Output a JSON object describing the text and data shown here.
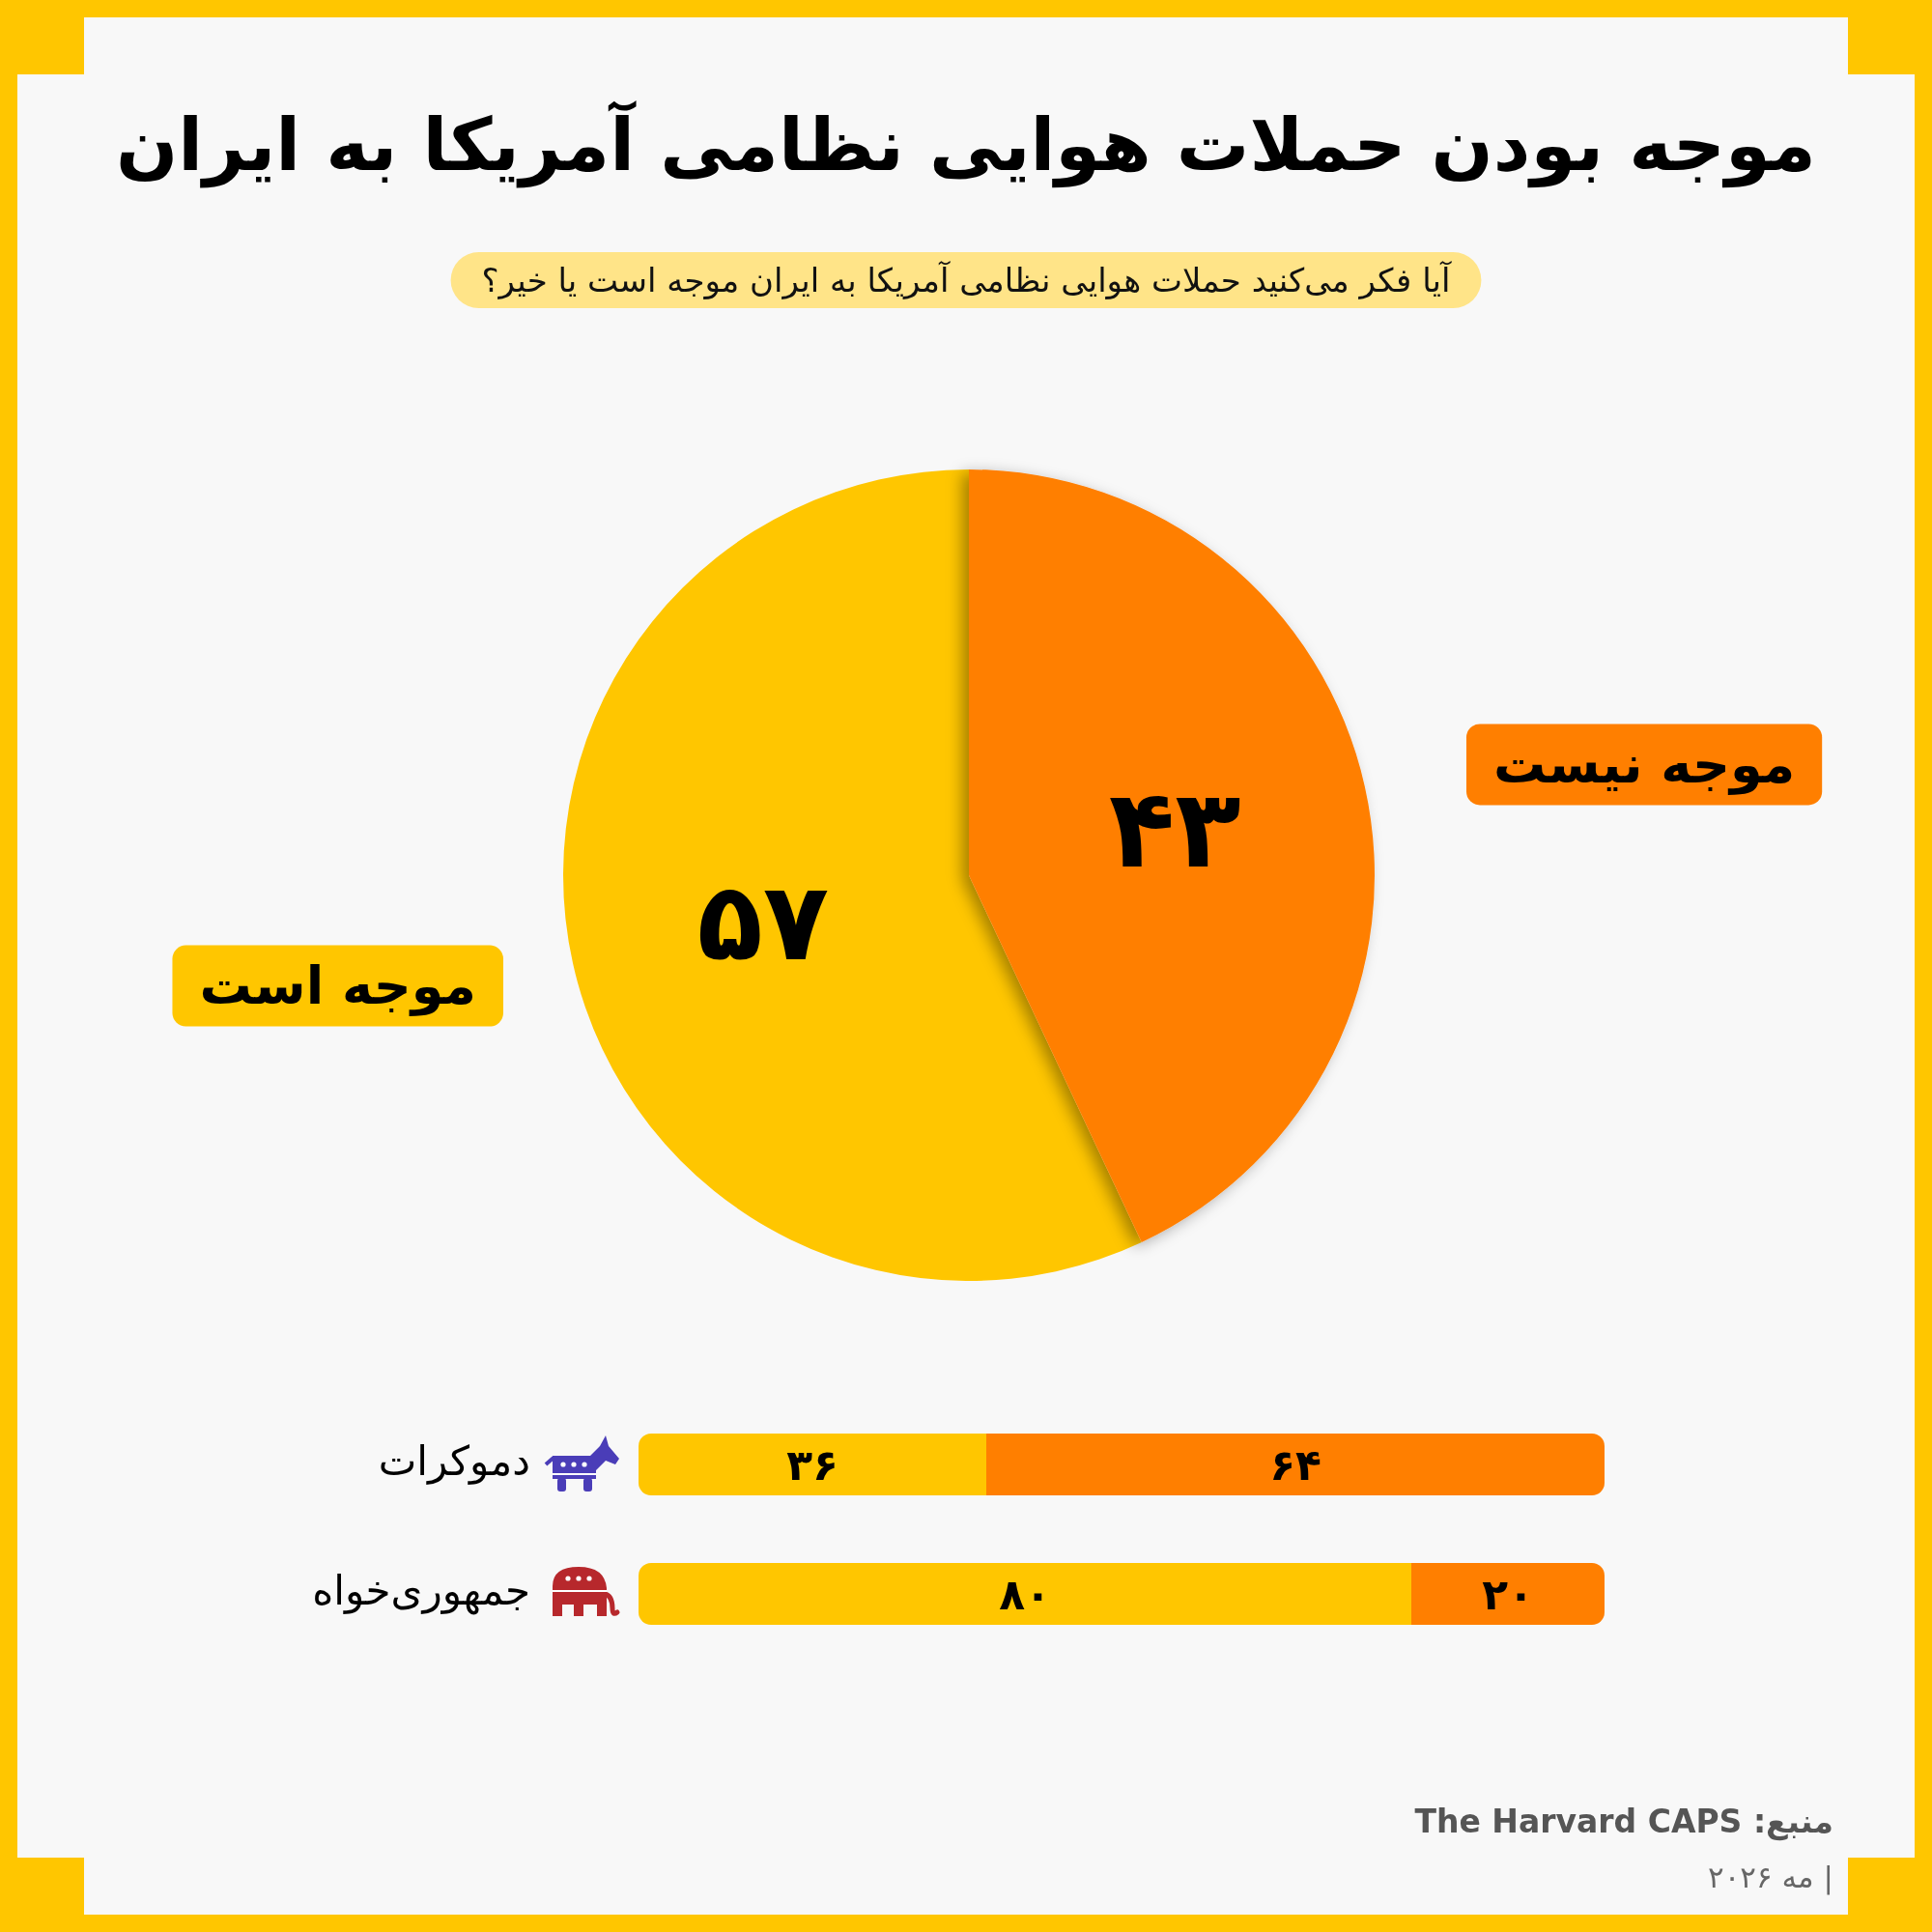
{
  "chart_data": [
    {
      "type": "pie",
      "title": "موجه بودن حملات هوایی نظامی آمریکا به ایران",
      "subtitle": "آیا فکر می‌کنید حملات هوایی نظامی آمریکا به ایران موجه است یا خیر؟",
      "categories": [
        "موجه است",
        "موجه نیست"
      ],
      "values": [
        57,
        43
      ],
      "colors": [
        "#ffc600",
        "#ff7f00"
      ],
      "value_labels": [
        "۵۷",
        "۴۳"
      ]
    },
    {
      "type": "bar",
      "orientation": "horizontal",
      "stacked": true,
      "categories": [
        "دموکرات",
        "جمهوری‌خواه"
      ],
      "xlim": [
        0,
        100
      ],
      "series": [
        {
          "color": "#ffc600",
          "values": [
            36,
            80
          ],
          "value_labels": [
            "۳۶",
            "۸۰"
          ]
        },
        {
          "color": "#ff7f00",
          "values": [
            64,
            20
          ],
          "value_labels": [
            "۶۴",
            "۲۰"
          ]
        }
      ],
      "annotations": [
        "منبع: The Harvard CAPS",
        "| مه ۲۰۲۶"
      ]
    }
  ]
}
